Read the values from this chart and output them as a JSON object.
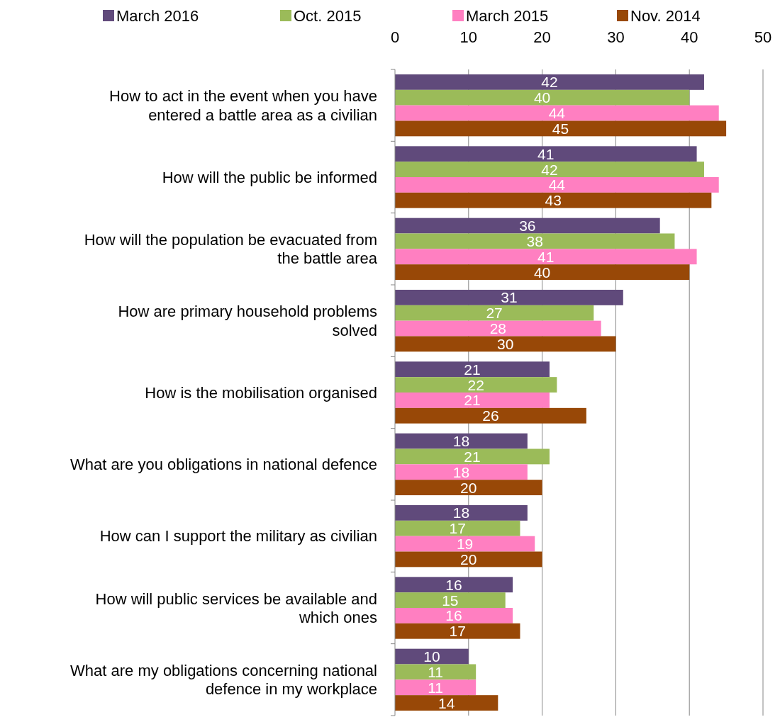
{
  "chart_data": {
    "type": "bar",
    "orientation": "horizontal",
    "categories": [
      "How to act in the event when you have\nentered a battle area as a civilian",
      "How will the public be informed",
      "How will the population be evacuated from\nthe battle area",
      "How are primary household problems\nsolved",
      "How is the mobilisation organised",
      "What are you obligations in national defence",
      "How can I support the military as civilian",
      "How will public services be available and\nwhich ones",
      "What are my obligations concerning national\ndefence in my workplace"
    ],
    "series": [
      {
        "name": "March 2016",
        "color": "#604a7b",
        "values": [
          42,
          41,
          36,
          31,
          21,
          18,
          18,
          16,
          10
        ]
      },
      {
        "name": "Oct. 2015",
        "color": "#9bbb59",
        "values": [
          40,
          42,
          38,
          27,
          22,
          21,
          17,
          15,
          11
        ]
      },
      {
        "name": "March 2015",
        "color": "#ff7fc1",
        "values": [
          44,
          44,
          41,
          28,
          21,
          18,
          19,
          16,
          11
        ]
      },
      {
        "name": "Nov. 2014",
        "color": "#984807",
        "values": [
          45,
          43,
          40,
          30,
          26,
          20,
          20,
          17,
          14
        ]
      }
    ],
    "xlim": [
      0,
      50
    ],
    "xticks": [
      0,
      10,
      20,
      30,
      40,
      50
    ],
    "grid": "x",
    "legend": "top",
    "data_labels": true
  }
}
